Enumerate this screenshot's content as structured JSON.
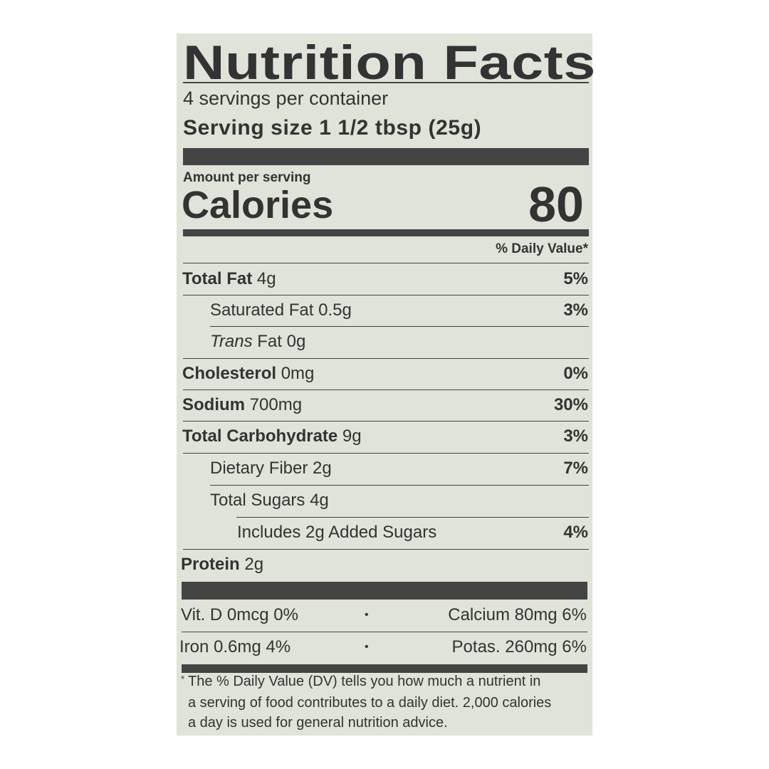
{
  "title": "Nutrition Facts",
  "servings_per_container": "4 servings per container",
  "serving_size": "Serving size 1 1/2 tbsp (25g)",
  "amount_per_serving": "Amount per serving",
  "calories_label": "Calories",
  "calories_value": "80",
  "daily_value_header": "% Daily Value*",
  "nutrients": [
    {
      "name": "Total Fat",
      "amount": "4g",
      "dv": "5%"
    },
    {
      "name": "Saturated Fat",
      "amount": "0.5g",
      "dv": "3%"
    },
    {
      "name": "Trans",
      "name_suffix": "Fat",
      "amount": "0g",
      "dv": ""
    },
    {
      "name": "Cholesterol",
      "amount": "0mg",
      "dv": "0%"
    },
    {
      "name": "Sodium",
      "amount": "700mg",
      "dv": "30%"
    },
    {
      "name": "Total Carbohydrate",
      "amount": "9g",
      "dv": "3%"
    },
    {
      "name": "Dietary Fiber",
      "amount": "2g",
      "dv": "7%"
    },
    {
      "name": "Total Sugars",
      "amount": "4g",
      "dv": ""
    },
    {
      "name": "Includes 2g Added Sugars",
      "amount": "",
      "dv": "4%"
    },
    {
      "name": "Protein",
      "amount": "2g",
      "dv": ""
    }
  ],
  "vitamins": [
    {
      "left": "Vit. D 0mcg 0%",
      "bullet": "•",
      "right": "Calcium 80mg 6%"
    },
    {
      "left": "Iron 0.6mg 4%",
      "bullet": "•",
      "right": "Potas. 260mg 6%"
    }
  ],
  "footnote": {
    "asterisk": "*",
    "line1": "The % Daily Value (DV) tells you how much a nutrient in",
    "line2": "a serving of food contributes to a daily diet. 2,000 calories",
    "line3": "a day is used for general nutrition advice."
  },
  "colors": {
    "background": "#dfe3d9",
    "ink": "#333333"
  }
}
